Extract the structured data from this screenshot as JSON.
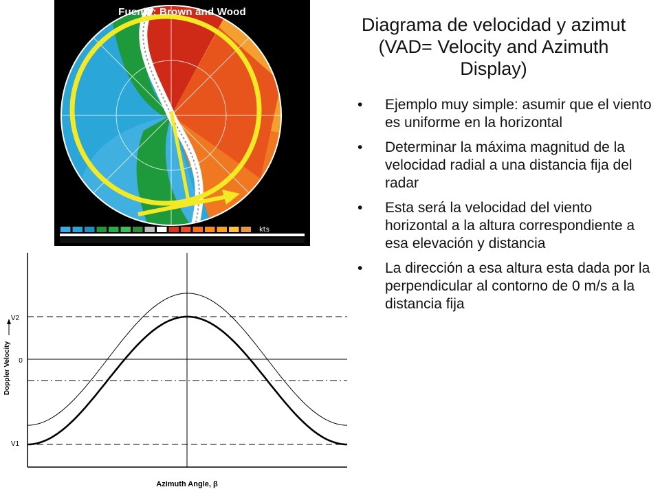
{
  "slide": {
    "credit": "Fuente: Brown and Wood",
    "title_line1": "Diagrama de velocidad  y azimut",
    "title_line2": "(VAD= Velocity and Azimuth",
    "title_line3": "Display)",
    "bullet_glyph": "•",
    "bullets": [
      "Ejemplo muy simple: asumir que el viento es uniforme en la horizontal",
      "Determinar la máxima magnitud de la velocidad radial a una distancia fija del radar",
      "Esta será la velocidad del viento horizontal a la altura correspondiente a esa elevación y distancia",
      "La dirección a esa altura esta dada por la perpendicular al contorno de 0 m/s a la distancia fija"
    ]
  },
  "radar": {
    "units_label": "kts",
    "legend_colors": [
      "#2fb0e6",
      "#22a8d8",
      "#1b8fc0",
      "#1c9a3a",
      "#24b048",
      "#38c050",
      "#2a8f38",
      "#bfbfbf",
      "#ffffff",
      "#e0331c",
      "#f04a20",
      "#ff6a1a",
      "#ff8a1a",
      "#ffa020",
      "#ffc040",
      "#e89838"
    ],
    "annotation_color": "#f4ea24"
  },
  "chart_data": {
    "type": "line",
    "xlabel": "Azimuth Angle, β",
    "ylabel": "Doppler Velocity",
    "y_ticks": [
      "V2",
      "0",
      "V1"
    ],
    "grid": false,
    "series": [
      {
        "x": [
          0,
          45,
          90,
          135,
          180,
          225,
          270,
          315,
          360
        ],
        "y": [
          -1.0,
          -0.707,
          0.0,
          0.707,
          1.0,
          0.707,
          0.0,
          -0.707,
          -1.0
        ]
      },
      {
        "x": [
          0,
          45,
          90,
          135,
          180,
          225,
          270,
          315,
          360
        ],
        "y": [
          -0.85,
          -0.45,
          0.3,
          1.0,
          1.3,
          1.0,
          0.3,
          -0.45,
          -0.85
        ]
      }
    ],
    "reference_lines": [
      "V2 (dashed)",
      "0 (solid)",
      "mean (dash-dot)",
      "V1 (dashed)"
    ]
  }
}
